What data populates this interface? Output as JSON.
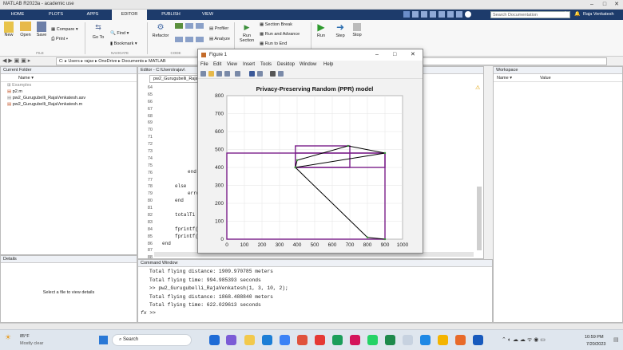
{
  "app": {
    "title": "MATLAB R2023a - academic use",
    "user": "Raja Venkatesh"
  },
  "toolstrip": {
    "tabs": [
      "HOME",
      "PLOTS",
      "APPS",
      "EDITOR",
      "PUBLISH",
      "VIEW"
    ],
    "active_tab": "EDITOR",
    "search_placeholder": "Search Documentation",
    "file": {
      "new": "New",
      "open": "Open",
      "save": "Save",
      "compare": "Compare",
      "print": "Print",
      "section": "FILE"
    },
    "navigate": {
      "goto": "Go To",
      "find": "Find",
      "bookmark": "Bookmark",
      "section": "NAVIGATE"
    },
    "code": {
      "refactor": "Refactor",
      "section": "CODE"
    },
    "analyze": {
      "profiler": "Profiler",
      "analyze": "Analyze"
    },
    "section_group": {
      "run_section": "Run\nSection",
      "section_break": "Section Break",
      "run_advance": "Run and Advance",
      "run_to_end": "Run to End"
    },
    "run": {
      "run": "Run",
      "step": "Step",
      "stop": "Stop"
    }
  },
  "address": {
    "crumbs": [
      "C:",
      "Users",
      "rajav",
      "OneDrive",
      "Documents",
      "MATLAB"
    ]
  },
  "current_folder": {
    "title": "Current Folder",
    "column": "Name",
    "items": [
      "Examples",
      "p2.m",
      "pw2_Gurugubelli_RajaVenkatesh.asv",
      "pw2_Gurugubelli_RajaVenkatesh.m"
    ]
  },
  "details": {
    "title": "Details",
    "message": "Select a file to view details"
  },
  "editor": {
    "title": "Editor - C:\\Users\\rajav\\",
    "tab": "pw2_Gurugubelli_Raja",
    "line_numbers": [
      "64",
      "65",
      "66",
      "67",
      "68",
      "69",
      "70",
      "71",
      "72",
      "73",
      "74",
      "75",
      "76",
      "77",
      "78",
      "79",
      "80",
      "81",
      "82",
      "83",
      "84",
      "85",
      "86",
      "87",
      "88"
    ],
    "lines": {
      "77": "end",
      "79": "else",
      "80": "erro",
      "81": "end",
      "83": "totalTi",
      "85": "fprintf(",
      "86": "fprintf(",
      "87": "end"
    }
  },
  "workspace": {
    "title": "Workspace",
    "col_name": "Name",
    "col_value": "Value"
  },
  "command_window": {
    "title": "Command Window",
    "lines": [
      "Total flying distance: 1909.970785 meters",
      "Total flying time: 994.985393 seconds",
      ">> pw2_Gurugubelli_RajaVenkatesh(1, 3, 10, 2);",
      "Total flying distance: 1868.488840 meters",
      "Total flying time: 622.029613 seconds"
    ],
    "prompt": ">>"
  },
  "figure": {
    "title": "Figure 1",
    "menu": [
      "File",
      "Edit",
      "View",
      "Insert",
      "Tools",
      "Desktop",
      "Window",
      "Help"
    ],
    "colors": {
      "rect": "#7a1f8a",
      "path": "#000000"
    }
  },
  "chart_data": {
    "type": "line",
    "title": "Privacy-Preserving Random (PPR) model",
    "xlim": [
      0,
      1000
    ],
    "ylim": [
      0,
      800
    ],
    "xticks": [
      0,
      100,
      200,
      300,
      400,
      500,
      600,
      700,
      800,
      900,
      1000
    ],
    "yticks": [
      0,
      100,
      200,
      300,
      400,
      500,
      600,
      700,
      800
    ],
    "grid": true,
    "rectangles": [
      {
        "x": [
          0,
          900
        ],
        "y": [
          0,
          480
        ]
      },
      {
        "x": [
          390,
          700
        ],
        "y": [
          400,
          520
        ]
      },
      {
        "x": [
          390,
          900
        ],
        "y": [
          400,
          480
        ]
      }
    ],
    "path": {
      "x": [
        900,
        800,
        390,
        400,
        690,
        900,
        390
      ],
      "y": [
        0,
        10,
        400,
        440,
        520,
        480,
        400
      ]
    }
  },
  "taskbar": {
    "weather_temp": "85°F",
    "weather_desc": "Mostly clear",
    "search": "Search",
    "time": "10:59 PM",
    "date": "7/20/2023"
  }
}
